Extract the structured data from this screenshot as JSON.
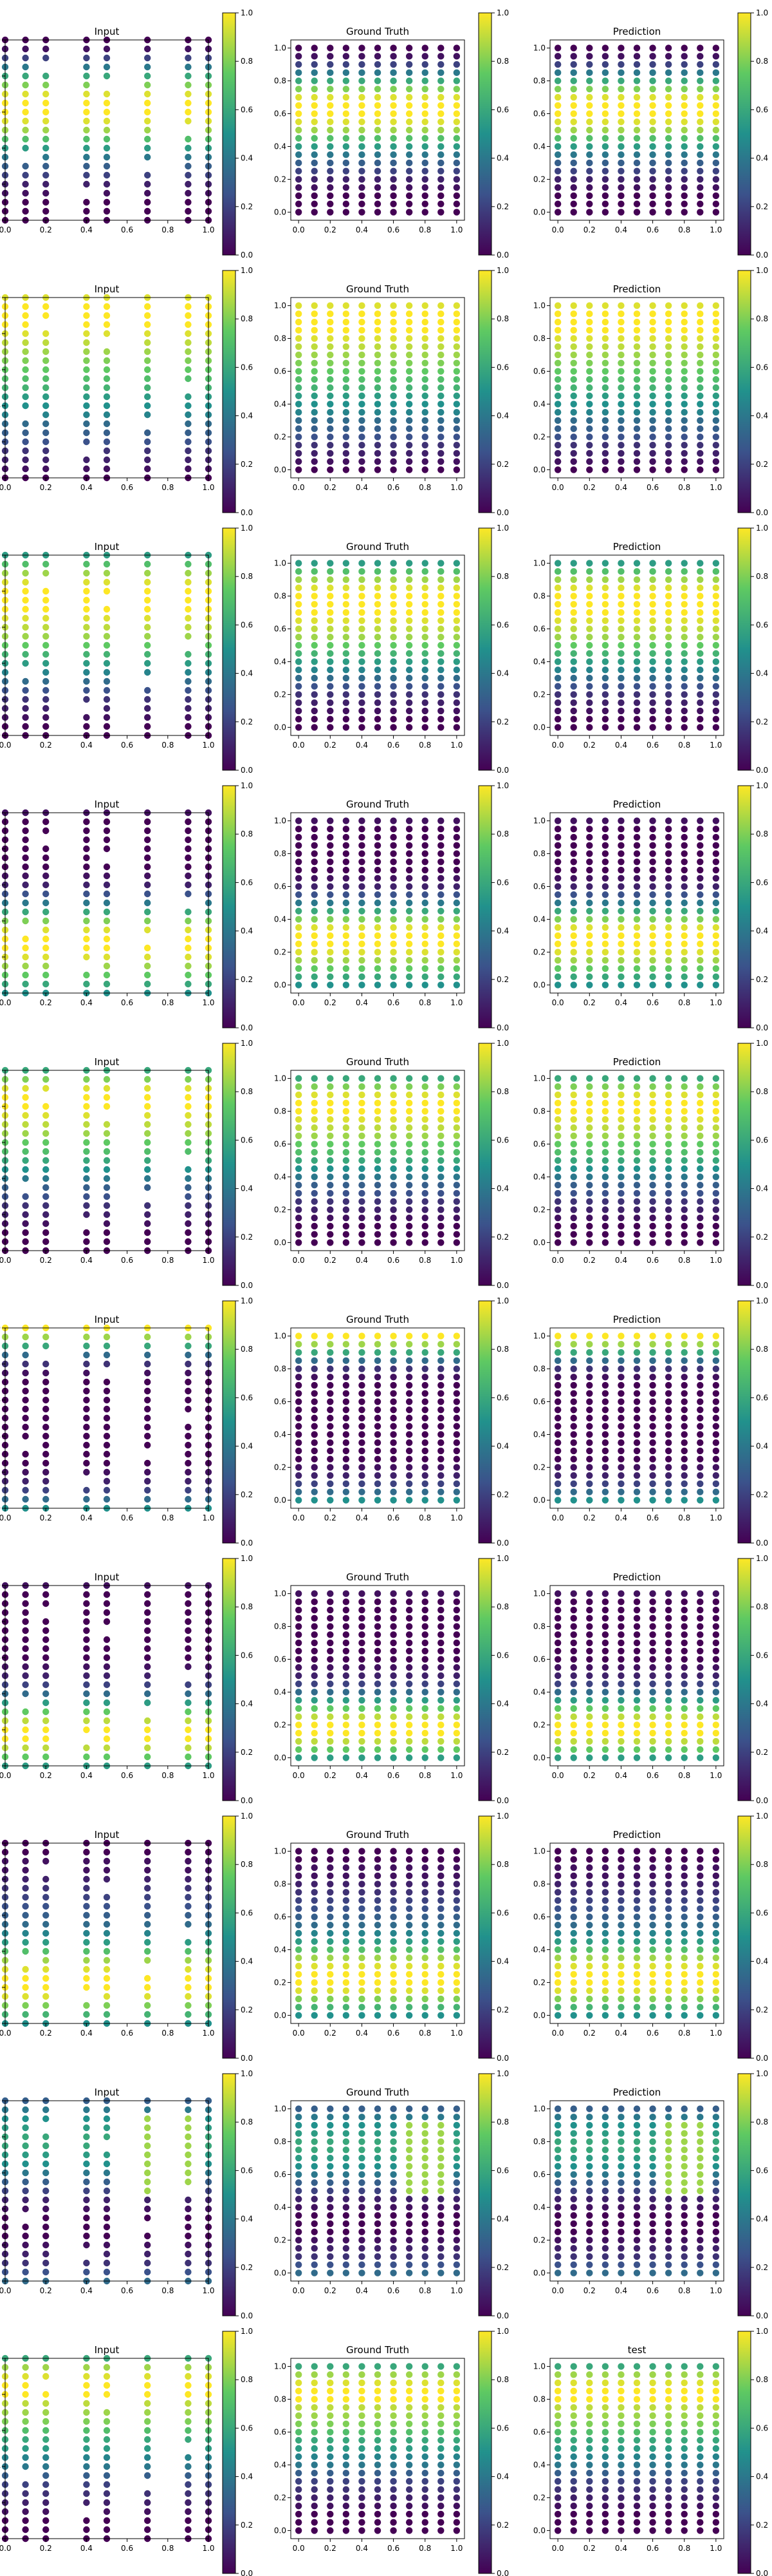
{
  "colormap": "viridis",
  "viridis_stops": [
    "#440154",
    "#3b528b",
    "#21918c",
    "#5ec962",
    "#fde725"
  ],
  "axis_color": "#000000",
  "chart_data": {
    "type": "scatter",
    "layout": "10 rows x 3 columns of scatter subplots",
    "grid_x": [
      0,
      0.1,
      0.2,
      0.3,
      0.4,
      0.5,
      0.6,
      0.7,
      0.8,
      0.9,
      1.0
    ],
    "grid_y": [
      0,
      0.05,
      0.1,
      0.15,
      0.2,
      0.25,
      0.3,
      0.35,
      0.4,
      0.45,
      0.5,
      0.55,
      0.6,
      0.65,
      0.7,
      0.75,
      0.8,
      0.85,
      0.9,
      0.95,
      1.0
    ],
    "input_columns_kept": [
      0,
      1,
      2,
      4,
      5,
      7,
      9,
      10
    ],
    "input_missing_points": [
      [
        0.1,
        0.35
      ],
      [
        0.3,
        0.6
      ],
      [
        0.5,
        0.75
      ],
      [
        0.7,
        0.3
      ],
      [
        0.8,
        0.65
      ],
      [
        0.2,
        0.85
      ],
      [
        0.4,
        0.15
      ],
      [
        0.9,
        0.5
      ]
    ],
    "xlim": [
      0,
      1.0
    ],
    "ylim": [
      0,
      1.0
    ],
    "xticks": [
      "0.0",
      "0.2",
      "0.4",
      "0.6",
      "0.8",
      "1.0"
    ],
    "yticks": [
      "0.0",
      "0.2",
      "0.4",
      "0.6",
      "0.8",
      "1.0"
    ],
    "colorbar_ticks": [
      "0.0",
      "0.2",
      "0.4",
      "0.6",
      "0.8",
      "1.0"
    ],
    "colorbar_range": [
      0,
      1.0
    ],
    "panel_titles": [
      "Input",
      "Ground Truth",
      "Prediction"
    ],
    "last_row_titles": [
      "Input",
      "Ground Truth",
      "test"
    ],
    "rows": [
      {
        "value_vs_y": [
          0.0,
          0.0,
          0.0,
          0.05,
          0.1,
          0.2,
          0.3,
          0.4,
          0.55,
          0.7,
          0.85,
          0.95,
          1.0,
          1.0,
          0.95,
          0.8,
          0.6,
          0.4,
          0.2,
          0.05,
          0.0
        ]
      },
      {
        "value_vs_y": [
          0.0,
          0.05,
          0.1,
          0.15,
          0.25,
          0.3,
          0.35,
          0.45,
          0.5,
          0.55,
          0.65,
          0.7,
          0.75,
          0.8,
          0.85,
          0.9,
          0.95,
          1.0,
          1.0,
          1.0,
          0.95
        ]
      },
      {
        "value_vs_y": [
          0.0,
          0.0,
          0.05,
          0.1,
          0.15,
          0.25,
          0.35,
          0.45,
          0.55,
          0.65,
          0.75,
          0.85,
          0.9,
          0.95,
          1.0,
          1.0,
          1.0,
          0.95,
          0.85,
          0.7,
          0.55
        ]
      },
      {
        "value_vs_y": [
          0.5,
          0.6,
          0.75,
          0.85,
          0.95,
          1.0,
          1.0,
          0.95,
          0.8,
          0.6,
          0.4,
          0.25,
          0.1,
          0.05,
          0.0,
          0.0,
          0.0,
          0.0,
          0.0,
          0.0,
          0.05
        ]
      },
      {
        "value_vs_y": [
          0.0,
          0.0,
          0.0,
          0.05,
          0.1,
          0.15,
          0.25,
          0.3,
          0.4,
          0.5,
          0.6,
          0.7,
          0.75,
          0.85,
          0.9,
          0.95,
          1.0,
          1.0,
          0.95,
          0.8,
          0.6
        ]
      },
      {
        "value_vs_y": [
          0.5,
          0.35,
          0.2,
          0.1,
          0.05,
          0.0,
          0.0,
          0.0,
          0.0,
          0.0,
          0.0,
          0.0,
          0.0,
          0.0,
          0.0,
          0.05,
          0.15,
          0.35,
          0.6,
          0.85,
          1.0
        ]
      },
      {
        "value_vs_y": [
          0.55,
          0.75,
          0.9,
          1.0,
          1.0,
          0.9,
          0.75,
          0.55,
          0.35,
          0.2,
          0.1,
          0.05,
          0.0,
          0.0,
          0.0,
          0.0,
          0.0,
          0.0,
          0.0,
          0.0,
          0.05
        ]
      },
      {
        "value_vs_y": [
          0.5,
          0.65,
          0.8,
          0.95,
          1.0,
          1.0,
          0.95,
          0.85,
          0.7,
          0.55,
          0.45,
          0.35,
          0.3,
          0.25,
          0.2,
          0.15,
          0.1,
          0.05,
          0.05,
          0.0,
          0.0
        ]
      },
      {
        "value_vs_y": [
          0.35,
          0.25,
          0.15,
          0.1,
          0.05,
          0.0,
          0.0,
          0.0,
          0.05,
          0.1,
          0.2,
          0.3,
          0.4,
          0.5,
          0.55,
          0.6,
          0.6,
          0.55,
          0.5,
          0.4,
          0.3
        ],
        "bright_columns": [
          0.7,
          0.8,
          0.9
        ],
        "bright_level": 0.85
      },
      {
        "value_vs_y": [
          0.0,
          0.0,
          0.0,
          0.05,
          0.1,
          0.15,
          0.2,
          0.3,
          0.4,
          0.45,
          0.55,
          0.6,
          0.7,
          0.8,
          0.85,
          0.9,
          1.0,
          1.0,
          0.95,
          0.85,
          0.6
        ]
      }
    ]
  }
}
